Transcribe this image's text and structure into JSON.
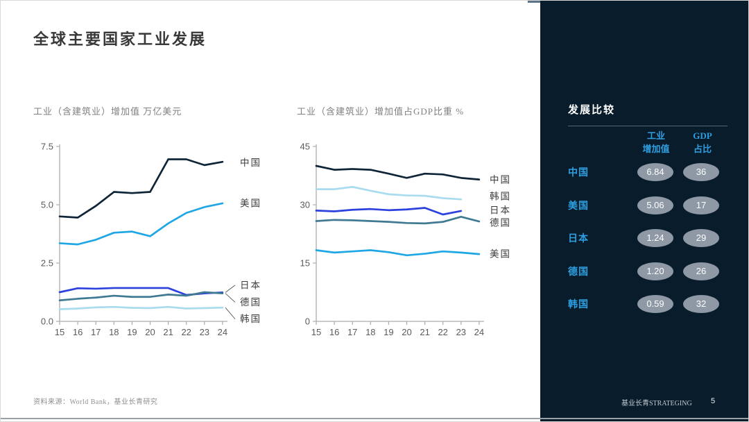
{
  "slide": {
    "title": "全球主要国家工业发展",
    "footer_source": "资料来源：World Bank，基业长青研究",
    "footer_brand": "基业长青STRATEGING",
    "page_number": "5"
  },
  "chart_data": [
    {
      "id": "industry-added-value",
      "type": "line",
      "title": "工业（含建筑业）增加值 万亿美元",
      "x": [
        "15",
        "16",
        "17",
        "18",
        "19",
        "20",
        "21",
        "22",
        "23",
        "24"
      ],
      "ylim": [
        0,
        7.5
      ],
      "yticks": [
        {
          "value": 0,
          "label": "0.0"
        },
        {
          "value": 2.5,
          "label": "2.5"
        },
        {
          "value": 5,
          "label": "5.0"
        },
        {
          "value": 7.5,
          "label": "7.5"
        }
      ],
      "grid": false,
      "legend_position": "right-of-line-end",
      "series": [
        {
          "name": "中国",
          "color": "#0F2537",
          "values": [
            4.5,
            4.45,
            4.95,
            5.55,
            5.5,
            5.55,
            6.95,
            6.95,
            6.7,
            6.84
          ],
          "label_value": 6.8,
          "connector": false
        },
        {
          "name": "美国",
          "color": "#1EA7E4",
          "values": [
            3.35,
            3.3,
            3.5,
            3.8,
            3.85,
            3.65,
            4.2,
            4.65,
            4.9,
            5.06
          ],
          "label_value": 5.06,
          "connector": false
        },
        {
          "name": "日本",
          "color": "#2C41DE",
          "values": [
            1.25,
            1.42,
            1.4,
            1.43,
            1.43,
            1.43,
            1.43,
            1.13,
            1.2,
            1.24
          ],
          "label_value": 1.55,
          "connector": true
        },
        {
          "name": "德国",
          "color": "#3F7A92",
          "values": [
            0.9,
            0.97,
            1.02,
            1.1,
            1.05,
            1.05,
            1.15,
            1.1,
            1.25,
            1.2
          ],
          "label_value": 0.82,
          "connector": true
        },
        {
          "name": "韩国",
          "color": "#A8DCEE",
          "values": [
            0.52,
            0.55,
            0.6,
            0.62,
            0.58,
            0.57,
            0.62,
            0.55,
            0.57,
            0.59
          ],
          "label_value": 0.1,
          "connector": true
        }
      ]
    },
    {
      "id": "industry-gdp-share",
      "type": "line",
      "title": "工业（含建筑业）增加值占GDP比重 %",
      "x": [
        "15",
        "16",
        "17",
        "18",
        "19",
        "20",
        "21",
        "22",
        "23",
        "24"
      ],
      "ylim": [
        0,
        45
      ],
      "yticks": [
        {
          "value": 0,
          "label": "0"
        },
        {
          "value": 15,
          "label": "15"
        },
        {
          "value": 30,
          "label": "30"
        },
        {
          "value": 45,
          "label": "45"
        }
      ],
      "grid": false,
      "legend_position": "right-of-line-end",
      "series": [
        {
          "name": "中国",
          "color": "#0F2537",
          "values": [
            40,
            39,
            39.2,
            39,
            38,
            36.9,
            38,
            37.8,
            36.9,
            36.5
          ],
          "label_value": 36.4,
          "connector": false
        },
        {
          "name": "韩国",
          "color": "#A8DCEE",
          "values": [
            34,
            34,
            34.6,
            33.6,
            32.7,
            32.4,
            32.3,
            31.7,
            31.4,
            null
          ],
          "label_value": 32.1,
          "connector": false
        },
        {
          "name": "日本",
          "color": "#2C41DE",
          "values": [
            28.5,
            28.3,
            28.7,
            28.9,
            28.6,
            28.8,
            29.2,
            27.5,
            28.4,
            null
          ],
          "label_value": 28.6,
          "connector": false
        },
        {
          "name": "德国",
          "color": "#3F7A92",
          "values": [
            25.8,
            26.1,
            26,
            25.8,
            25.6,
            25.3,
            25.2,
            25.6,
            26.9,
            25.7
          ],
          "label_value": 25.4,
          "connector": false
        },
        {
          "name": "美国",
          "color": "#1EA7E4",
          "values": [
            18.3,
            17.7,
            18,
            18.3,
            17.8,
            17,
            17.4,
            18,
            17.7,
            17.3
          ],
          "label_value": 17.3,
          "connector": false
        }
      ]
    }
  ],
  "sidebar": {
    "heading": "发展比较",
    "column_headers": [
      {
        "line1": "工业",
        "line2": "增加值"
      },
      {
        "line1": "GDP",
        "line2": "占比"
      }
    ],
    "rows": [
      {
        "country": "中国",
        "industry_value": "6.84",
        "gdp_share": "36"
      },
      {
        "country": "美国",
        "industry_value": "5.06",
        "gdp_share": "17"
      },
      {
        "country": "日本",
        "industry_value": "1.24",
        "gdp_share": "29"
      },
      {
        "country": "德国",
        "industry_value": "1.20",
        "gdp_share": "26"
      },
      {
        "country": "韩国",
        "industry_value": "0.59",
        "gdp_share": "32"
      }
    ],
    "colors": {
      "background": "#081C2B",
      "accent_blue": "#2E9FE0",
      "pill_gray": "#8E99A5",
      "rule_gray": "#55677A"
    }
  }
}
